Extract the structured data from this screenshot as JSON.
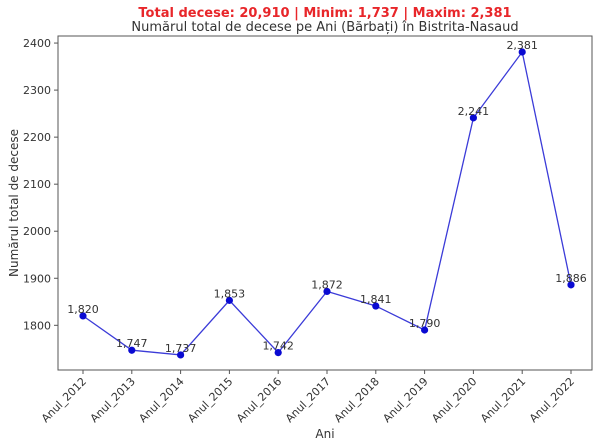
{
  "chart_data": {
    "type": "line",
    "suptitle": "Total decese: 20,910 | Minim: 1,737 | Maxim: 2,381",
    "title": "Numărul total de decese pe Ani (Bărbați) în Bistrita-Nasaud",
    "xlabel": "Ani",
    "ylabel": "Numărul total de decese",
    "categories": [
      "Anul_2012",
      "Anul_2013",
      "Anul_2014",
      "Anul_2015",
      "Anul_2016",
      "Anul_2017",
      "Anul_2018",
      "Anul_2019",
      "Anul_2020",
      "Anul_2021",
      "Anul_2022"
    ],
    "values": [
      1820,
      1747,
      1737,
      1853,
      1742,
      1872,
      1841,
      1790,
      2241,
      2381,
      1886
    ],
    "data_labels": [
      "1,820",
      "1,747",
      "1,737",
      "1,853",
      "1,742",
      "1,872",
      "1,841",
      "1,790",
      "2,241",
      "2,381",
      "1,886"
    ],
    "y_ticks": [
      1800,
      1900,
      2000,
      2100,
      2200,
      2300,
      2400
    ],
    "ylim": [
      1705,
      2415
    ],
    "grid": false,
    "line_color": "#3b3bd8",
    "marker_color": "#0a0ad2",
    "suptitle_color": "#e8262a"
  }
}
